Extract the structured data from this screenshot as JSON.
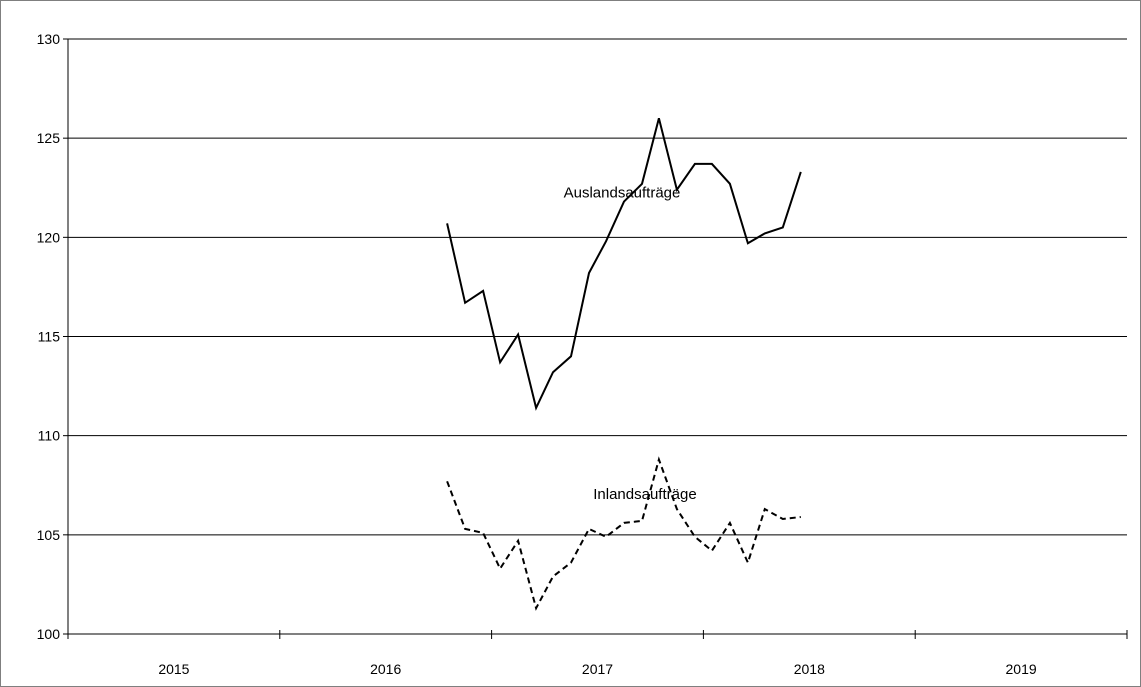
{
  "chart_data": {
    "type": "line",
    "ylim": [
      100,
      130
    ],
    "yticks": [
      100,
      105,
      110,
      115,
      120,
      125,
      130
    ],
    "grid": true,
    "xlim": [
      2015.0,
      2020.0
    ],
    "year_labels": [
      "2015",
      "2016",
      "2017",
      "2018",
      "2019"
    ],
    "series": [
      {
        "name": "Auslandsaufträge",
        "style": "solid",
        "color": "#000000",
        "x": [
          2016.79,
          2016.875,
          2016.96,
          2017.04,
          2017.125,
          2017.21,
          2017.29,
          2017.375,
          2017.46,
          2017.54,
          2017.625,
          2017.71,
          2017.79,
          2017.875,
          2017.96,
          2018.04,
          2018.125,
          2018.21,
          2018.29,
          2018.375,
          2018.46,
          2018.54
        ],
        "values": [
          120.7,
          116.7,
          117.3,
          113.7,
          115.1,
          111.4,
          113.2,
          114.0,
          118.2,
          119.8,
          121.8,
          122.7,
          126.0,
          122.4,
          123.7,
          123.7,
          122.7,
          119.7,
          120.2,
          120.5,
          123.3,
          null
        ]
      },
      {
        "name": "Inlandsaufträge",
        "style": "dashed",
        "color": "#000000",
        "x": [
          2016.79,
          2016.875,
          2016.96,
          2017.04,
          2017.125,
          2017.21,
          2017.29,
          2017.375,
          2017.46,
          2017.54,
          2017.625,
          2017.71,
          2017.79,
          2017.875,
          2017.96,
          2018.04,
          2018.125,
          2018.21,
          2018.29,
          2018.375,
          2018.46,
          2018.54
        ],
        "values": [
          107.7,
          105.3,
          105.1,
          103.3,
          104.7,
          101.3,
          102.9,
          103.6,
          105.3,
          104.9,
          105.6,
          105.7,
          108.8,
          106.3,
          104.9,
          104.2,
          105.6,
          103.6,
          106.3,
          105.8,
          105.9,
          null
        ]
      }
    ],
    "annotations": [
      {
        "text": "Auslandsaufträge",
        "x": 2017.34,
        "y": 122.0
      },
      {
        "text": "Inlandsaufträge",
        "x": 2017.48,
        "y": 106.8
      }
    ]
  }
}
